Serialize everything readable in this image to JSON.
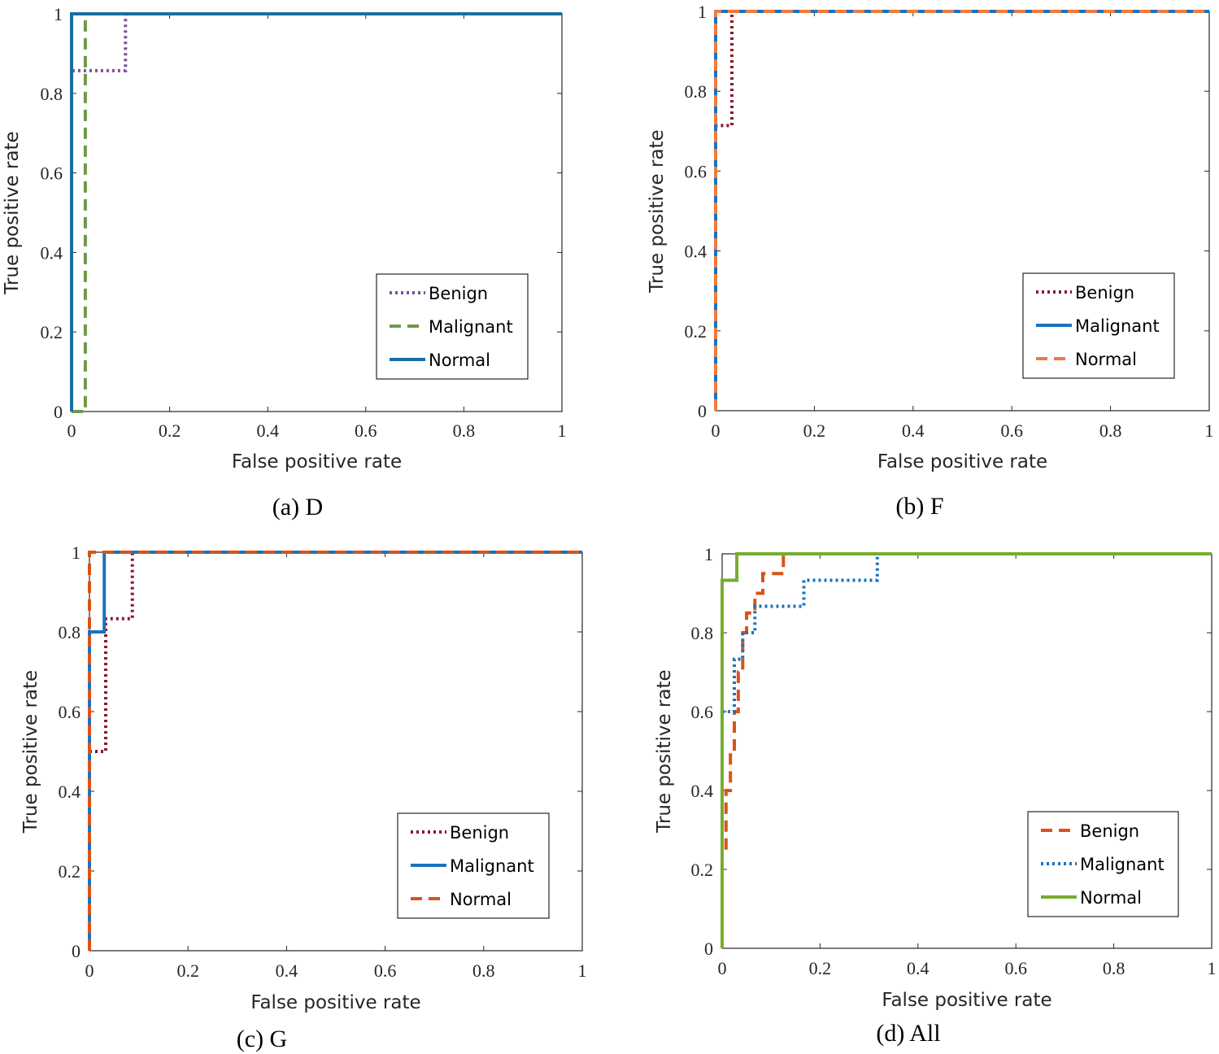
{
  "chart_data": [
    {
      "id": "D",
      "type": "line",
      "title": "",
      "caption": "(a) D",
      "xlabel": "False positive rate",
      "ylabel": "True positive rate",
      "xlim": [
        0,
        1
      ],
      "ylim": [
        0,
        1
      ],
      "xticks": [
        "0",
        "0.2",
        "0.4",
        "0.6",
        "0.8",
        "1"
      ],
      "yticks": [
        "0",
        "0.2",
        "0.4",
        "0.6",
        "0.8",
        "1"
      ],
      "legend_position": "bottom-right",
      "series": [
        {
          "name": "Benign",
          "color": "#7E4F9A",
          "style": "dotted",
          "x": [
            0,
            0,
            0.11,
            0.11,
            1
          ],
          "y": [
            0,
            0.857,
            0.857,
            1,
            1
          ]
        },
        {
          "name": "Malignant",
          "color": "#6F9A45",
          "style": "dashed",
          "x": [
            0,
            0.028,
            0.028,
            1
          ],
          "y": [
            0,
            0,
            1,
            1
          ]
        },
        {
          "name": "Normal",
          "color": "#1A6FA0",
          "style": "solid",
          "x": [
            0,
            0,
            1
          ],
          "y": [
            0,
            1,
            1
          ]
        }
      ]
    },
    {
      "id": "F",
      "type": "line",
      "title": "",
      "caption": "(b) F",
      "xlabel": "False positive rate",
      "ylabel": "True positive rate",
      "xlim": [
        0,
        1
      ],
      "ylim": [
        0,
        1
      ],
      "xticks": [
        "0",
        "0.2",
        "0.4",
        "0.6",
        "0.8",
        "1"
      ],
      "yticks": [
        "0",
        "0.2",
        "0.4",
        "0.6",
        "0.8",
        "1"
      ],
      "legend_position": "bottom-right",
      "series": [
        {
          "name": "Benign",
          "color": "#8B1A2B",
          "style": "dotted",
          "x": [
            0,
            0,
            0.033,
            0.033,
            1
          ],
          "y": [
            0,
            0.714,
            0.714,
            1,
            1
          ]
        },
        {
          "name": "Malignant",
          "color": "#1B72BE",
          "style": "solid",
          "x": [
            0,
            0,
            1
          ],
          "y": [
            0,
            1,
            1
          ]
        },
        {
          "name": "Normal",
          "color": "#F07B3C",
          "style": "dashed",
          "x": [
            0,
            0,
            1
          ],
          "y": [
            0,
            1,
            1
          ]
        }
      ]
    },
    {
      "id": "G",
      "type": "line",
      "title": "",
      "caption": "(c) G",
      "xlabel": "False positive rate",
      "ylabel": "True positive rate",
      "xlim": [
        0,
        1
      ],
      "ylim": [
        0,
        1
      ],
      "xticks": [
        "0",
        "0.2",
        "0.4",
        "0.6",
        "0.8",
        "1"
      ],
      "yticks": [
        "0",
        "0.2",
        "0.4",
        "0.6",
        "0.8",
        "1"
      ],
      "legend_position": "bottom-right",
      "series": [
        {
          "name": "Benign",
          "color": "#8B1A2B",
          "style": "dotted",
          "x": [
            0,
            0,
            0.033,
            0.033,
            0.087,
            0.087,
            1
          ],
          "y": [
            0,
            0.5,
            0.5,
            0.833,
            0.833,
            1,
            1
          ]
        },
        {
          "name": "Malignant",
          "color": "#1B72BE",
          "style": "solid",
          "x": [
            0,
            0,
            0.03,
            0.03,
            1
          ],
          "y": [
            0,
            0.8,
            0.8,
            1,
            1
          ]
        },
        {
          "name": "Normal",
          "color": "#D95319",
          "style": "dashed",
          "x": [
            0,
            0,
            1
          ],
          "y": [
            0,
            1,
            1
          ]
        }
      ]
    },
    {
      "id": "All",
      "type": "line",
      "title": "",
      "caption": "(d) All",
      "xlabel": "False positive rate",
      "ylabel": "True positive rate",
      "xlim": [
        0,
        1
      ],
      "ylim": [
        0,
        1
      ],
      "xticks": [
        "0",
        "0.2",
        "0.4",
        "0.6",
        "0.8",
        "1"
      ],
      "yticks": [
        "0",
        "0.2",
        "0.4",
        "0.6",
        "0.8",
        "1"
      ],
      "legend_position": "bottom-right",
      "series": [
        {
          "name": "Benign",
          "color": "#D95319",
          "style": "dashed",
          "x": [
            0.008,
            0.008,
            0.017,
            0.017,
            0.025,
            0.025,
            0.033,
            0.033,
            0.042,
            0.042,
            0.05,
            0.05,
            0.067,
            0.067,
            0.083,
            0.083,
            0.1,
            0.1,
            0.125,
            0.125,
            1
          ],
          "y": [
            0.25,
            0.4,
            0.4,
            0.5,
            0.5,
            0.6,
            0.6,
            0.7,
            0.7,
            0.8,
            0.8,
            0.85,
            0.85,
            0.9,
            0.9,
            0.95,
            0.95,
            0.95,
            0.95,
            1,
            1
          ]
        },
        {
          "name": "Malignant",
          "color": "#1B72BE",
          "style": "dotted",
          "x": [
            0,
            0.025,
            0.025,
            0.033,
            0.033,
            0.042,
            0.042,
            0.067,
            0.067,
            0.167,
            0.167,
            0.317,
            0.317,
            1
          ],
          "y": [
            0.6,
            0.6,
            0.733,
            0.733,
            0.733,
            0.733,
            0.8,
            0.8,
            0.867,
            0.867,
            0.933,
            0.933,
            1,
            1
          ]
        },
        {
          "name": "Normal",
          "color": "#77AC30",
          "style": "solid",
          "x": [
            0,
            0,
            0.03,
            0.03,
            1
          ],
          "y": [
            0,
            0.933,
            0.933,
            1,
            1
          ]
        }
      ]
    }
  ]
}
